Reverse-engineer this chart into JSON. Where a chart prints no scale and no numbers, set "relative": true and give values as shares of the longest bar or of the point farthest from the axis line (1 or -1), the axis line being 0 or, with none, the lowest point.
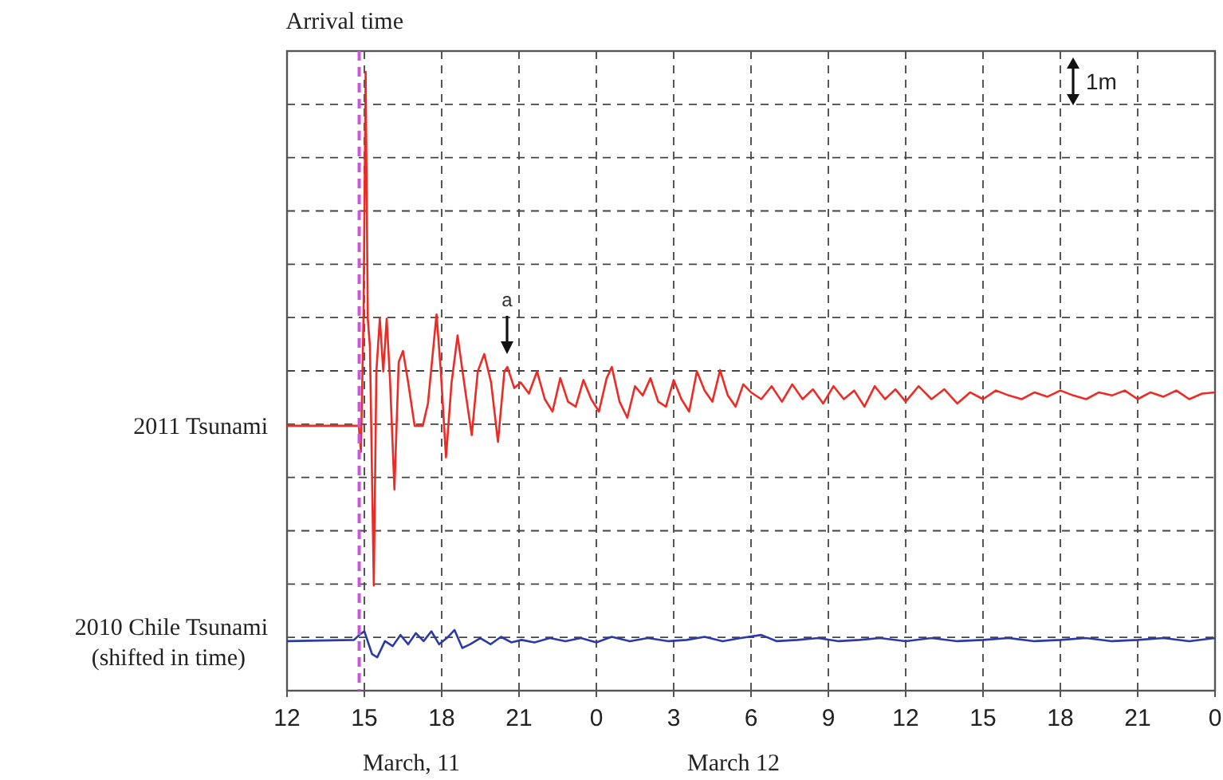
{
  "chart_data": {
    "type": "line",
    "relative": true,
    "grid": true,
    "xlim": [
      "2011-03-11T12:00",
      "2011-03-13T00:00"
    ],
    "xticks": [
      {
        "value": "2011-03-11T12:00",
        "label": "12"
      },
      {
        "value": "2011-03-11T15:00",
        "label": "15"
      },
      {
        "value": "2011-03-11T18:00",
        "label": "18"
      },
      {
        "value": "2011-03-11T21:00",
        "label": "21"
      },
      {
        "value": "2011-03-12T00:00",
        "label": "0"
      },
      {
        "value": "2011-03-12T03:00",
        "label": "3"
      },
      {
        "value": "2011-03-12T06:00",
        "label": "6"
      },
      {
        "value": "2011-03-12T09:00",
        "label": "9"
      },
      {
        "value": "2011-03-12T12:00",
        "label": "12"
      },
      {
        "value": "2011-03-12T15:00",
        "label": "15"
      },
      {
        "value": "2011-03-12T18:00",
        "label": "18"
      },
      {
        "value": "2011-03-12T21:00",
        "label": "21"
      },
      {
        "value": "2011-03-13T00:00",
        "label": "0"
      }
    ],
    "series": [
      {
        "name": "2011 Tsunami",
        "color": "#ee2a24",
        "x": [
          "2011-03-11T12:00",
          "2011-03-11T14:42",
          "2011-03-11T14:47",
          "2011-03-11T14:52",
          "2011-03-11T14:58",
          "2011-03-11T15:03",
          "2011-03-11T15:08",
          "2011-03-11T15:13",
          "2011-03-11T15:22",
          "2011-03-11T15:28",
          "2011-03-11T15:36",
          "2011-03-11T15:44",
          "2011-03-11T15:52",
          "2011-03-11T16:00",
          "2011-03-11T16:10",
          "2011-03-11T16:20",
          "2011-03-11T16:30",
          "2011-03-11T16:42",
          "2011-03-11T16:57",
          "2011-03-11T17:16",
          "2011-03-11T17:28",
          "2011-03-11T17:48",
          "2011-03-11T17:58",
          "2011-03-11T18:10",
          "2011-03-11T18:23",
          "2011-03-11T18:37",
          "2011-03-11T18:54",
          "2011-03-11T19:10",
          "2011-03-11T19:24",
          "2011-03-11T19:39",
          "2011-03-11T19:55",
          "2011-03-11T20:11",
          "2011-03-11T20:26",
          "2011-03-11T20:33",
          "2011-03-11T20:49",
          "2011-03-11T21:04",
          "2011-03-11T21:23",
          "2011-03-11T21:42",
          "2011-03-11T22:00",
          "2011-03-11T22:18",
          "2011-03-11T22:36",
          "2011-03-11T22:54",
          "2011-03-11T23:12",
          "2011-03-11T23:30",
          "2011-03-11T23:48",
          "2011-03-12T00:06",
          "2011-03-12T00:24",
          "2011-03-12T00:36",
          "2011-03-12T00:54",
          "2011-03-12T01:12",
          "2011-03-12T01:30",
          "2011-03-12T01:48",
          "2011-03-12T02:06",
          "2011-03-12T02:24",
          "2011-03-12T02:42",
          "2011-03-12T03:00",
          "2011-03-12T03:18",
          "2011-03-12T03:36",
          "2011-03-12T03:54",
          "2011-03-12T04:12",
          "2011-03-12T04:30",
          "2011-03-12T04:48",
          "2011-03-12T05:06",
          "2011-03-12T05:24",
          "2011-03-12T05:42",
          "2011-03-12T06:00",
          "2011-03-12T06:24",
          "2011-03-12T06:48",
          "2011-03-12T07:12",
          "2011-03-12T07:36",
          "2011-03-12T08:00",
          "2011-03-12T08:24",
          "2011-03-12T08:48",
          "2011-03-12T09:12",
          "2011-03-12T09:36",
          "2011-03-12T10:00",
          "2011-03-12T10:24",
          "2011-03-12T10:48",
          "2011-03-12T11:12",
          "2011-03-12T11:36",
          "2011-03-12T12:00",
          "2011-03-12T12:30",
          "2011-03-12T13:00",
          "2011-03-12T13:30",
          "2011-03-12T14:00",
          "2011-03-12T14:30",
          "2011-03-12T15:00",
          "2011-03-12T15:30",
          "2011-03-12T16:00",
          "2011-03-12T16:30",
          "2011-03-12T17:00",
          "2011-03-12T17:30",
          "2011-03-12T18:00",
          "2011-03-12T18:30",
          "2011-03-12T19:00",
          "2011-03-12T19:30",
          "2011-03-12T20:00",
          "2011-03-12T20:30",
          "2011-03-12T21:00",
          "2011-03-12T21:30",
          "2011-03-12T22:00",
          "2011-03-12T22:30",
          "2011-03-12T23:00",
          "2011-03-12T23:30",
          "2011-03-13T00:00"
        ],
        "values": [
          0.428,
          0.428,
          0.428,
          0.386,
          0.601,
          1,
          0.601,
          0.556,
          0.17,
          0.516,
          0.601,
          0.516,
          0.601,
          0.498,
          0.325,
          0.531,
          0.549,
          0.498,
          0.428,
          0.428,
          0.464,
          0.608,
          0.516,
          0.377,
          0.498,
          0.574,
          0.489,
          0.413,
          0.516,
          0.544,
          0.498,
          0.402,
          0.516,
          0.523,
          0.489,
          0.498,
          0.48,
          0.516,
          0.471,
          0.451,
          0.505,
          0.467,
          0.459,
          0.502,
          0.471,
          0.451,
          0.505,
          0.523,
          0.467,
          0.441,
          0.492,
          0.477,
          0.505,
          0.467,
          0.459,
          0.502,
          0.471,
          0.451,
          0.516,
          0.485,
          0.467,
          0.518,
          0.477,
          0.459,
          0.495,
          0.482,
          0.471,
          0.492,
          0.467,
          0.495,
          0.471,
          0.487,
          0.464,
          0.492,
          0.471,
          0.485,
          0.459,
          0.492,
          0.471,
          0.487,
          0.467,
          0.492,
          0.471,
          0.487,
          0.464,
          0.482,
          0.471,
          0.485,
          0.477,
          0.471,
          0.482,
          0.475,
          0.485,
          0.477,
          0.471,
          0.482,
          0.477,
          0.485,
          0.471,
          0.482,
          0.475,
          0.485,
          0.471,
          0.48,
          0.482
        ]
      },
      {
        "name": "2010 Chile Tsunami\n(shifted in time)",
        "color": "#2b3aa8",
        "x": [
          "2011-03-11T12:00",
          "2011-03-11T14:36",
          "2011-03-11T14:48",
          "2011-03-11T15:00",
          "2011-03-11T15:18",
          "2011-03-11T15:30",
          "2011-03-11T15:48",
          "2011-03-11T16:06",
          "2011-03-11T16:24",
          "2011-03-11T16:42",
          "2011-03-11T17:00",
          "2011-03-11T17:18",
          "2011-03-11T17:36",
          "2011-03-11T17:54",
          "2011-03-11T18:12",
          "2011-03-11T18:30",
          "2011-03-11T18:48",
          "2011-03-11T19:06",
          "2011-03-11T19:30",
          "2011-03-11T19:54",
          "2011-03-11T20:18",
          "2011-03-11T20:42",
          "2011-03-11T21:06",
          "2011-03-11T21:36",
          "2011-03-11T22:12",
          "2011-03-11T22:48",
          "2011-03-11T23:24",
          "2011-03-12T00:00",
          "2011-03-12T00:36",
          "2011-03-12T01:18",
          "2011-03-12T02:00",
          "2011-03-12T02:48",
          "2011-03-12T03:30",
          "2011-03-12T04:12",
          "2011-03-12T04:54",
          "2011-03-12T05:36",
          "2011-03-12T06:24",
          "2011-03-12T07:00",
          "2011-03-12T07:48",
          "2011-03-12T08:36",
          "2011-03-12T09:24",
          "2011-03-12T10:12",
          "2011-03-12T11:00",
          "2011-03-12T12:00",
          "2011-03-12T13:00",
          "2011-03-12T14:00",
          "2011-03-12T15:00",
          "2011-03-12T16:00",
          "2011-03-12T17:00",
          "2011-03-12T18:00",
          "2011-03-12T19:00",
          "2011-03-12T20:00",
          "2011-03-12T21:00",
          "2011-03-12T22:00",
          "2011-03-12T23:00",
          "2011-03-13T00:00"
        ],
        "values": [
          0.08,
          0.082,
          0.09,
          0.096,
          0.059,
          0.054,
          0.08,
          0.072,
          0.09,
          0.075,
          0.093,
          0.08,
          0.096,
          0.075,
          0.085,
          0.098,
          0.069,
          0.075,
          0.085,
          0.075,
          0.087,
          0.078,
          0.082,
          0.078,
          0.085,
          0.08,
          0.085,
          0.078,
          0.087,
          0.08,
          0.085,
          0.08,
          0.082,
          0.087,
          0.08,
          0.085,
          0.09,
          0.08,
          0.082,
          0.085,
          0.08,
          0.082,
          0.085,
          0.08,
          0.085,
          0.08,
          0.082,
          0.085,
          0.08,
          0.082,
          0.085,
          0.08,
          0.082,
          0.085,
          0.08,
          0.085
        ]
      }
    ],
    "ref_lines": [
      {
        "axis": "x",
        "value": "2011-03-11T14:48",
        "label": "Arrival time",
        "color": "#cc55dd",
        "line_style": "dashed"
      }
    ],
    "annotations": [
      "March, 11",
      "March 12",
      "1m",
      "a"
    ]
  }
}
